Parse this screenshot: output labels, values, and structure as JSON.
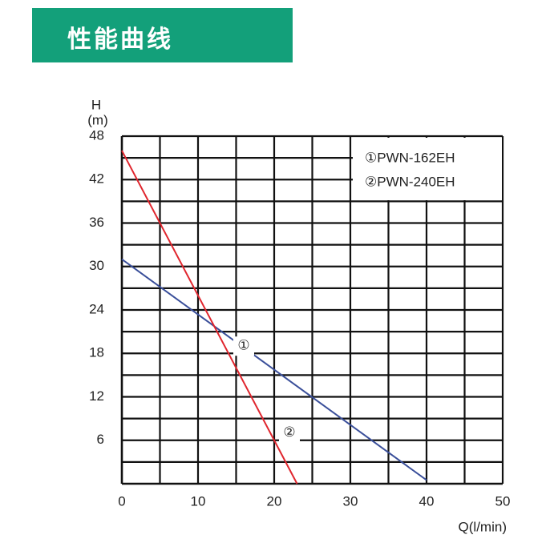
{
  "header": {
    "title": "性能曲线"
  },
  "chart_data": {
    "type": "line",
    "y_label": "H",
    "y_unit": "(m)",
    "x_label": "Q(l/min)",
    "xlim": [
      0,
      50
    ],
    "xticks": [
      0,
      10,
      20,
      30,
      40,
      50
    ],
    "x_minor_ticks": [
      5,
      15,
      25,
      35,
      45
    ],
    "ylim": [
      0,
      48
    ],
    "yticks": [
      6,
      12,
      18,
      24,
      30,
      36,
      42,
      48
    ],
    "y_minor_ticks": [
      3,
      9,
      15,
      21,
      27,
      33,
      39,
      45
    ],
    "grid": true,
    "series": [
      {
        "name": "①PWN-162EH",
        "color": "#3a4f9a",
        "x": [
          0,
          40
        ],
        "values": [
          31,
          0.5
        ],
        "annotation": "①",
        "annotation_at": [
          16,
          19
        ]
      },
      {
        "name": "②PWN-240EH",
        "color": "#e0262e",
        "x": [
          0,
          23
        ],
        "values": [
          46,
          0
        ],
        "annotation": "②",
        "annotation_at": [
          22,
          7
        ]
      }
    ],
    "legend": "upper right"
  }
}
